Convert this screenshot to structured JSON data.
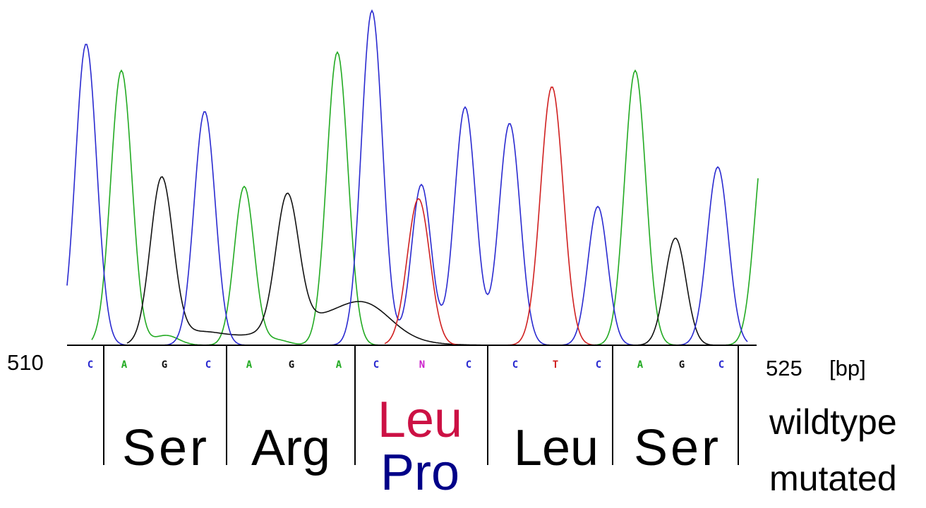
{
  "colors": {
    "A": "#22aa22",
    "C": "#2a2ad0",
    "G": "#111111",
    "T": "#d02020",
    "N": "#cc22cc",
    "wildtype_aa": "#cc1144",
    "mutated_aa": "#000088"
  },
  "axis": {
    "start_label": "510",
    "end_label": "525",
    "unit_label": "[bp]"
  },
  "bases": [
    "C",
    "A",
    "G",
    "C",
    "A",
    "G",
    "A",
    "C",
    "N",
    "C",
    "C",
    "T",
    "C",
    "A",
    "G",
    "C"
  ],
  "codons": {
    "c1": "Ser",
    "c2": "Arg",
    "c3_wildtype": "Leu",
    "c3_mutated": "Pro",
    "c4": "Leu",
    "c5": "Ser"
  },
  "legend": {
    "wildtype": "wildtype",
    "mutated": "mutated"
  }
}
